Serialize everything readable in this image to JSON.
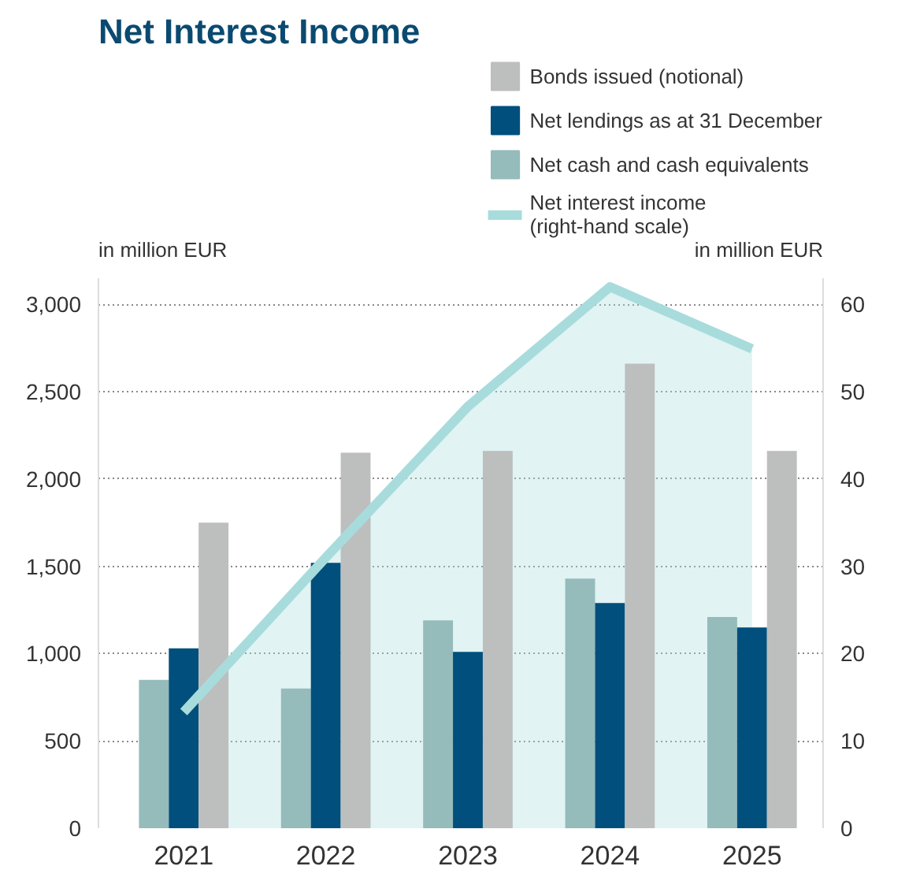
{
  "chart_data": {
    "type": "bar",
    "title": "Net Interest Income",
    "ylabel": "in million EUR",
    "y2label": "in million EUR",
    "categories": [
      "2021",
      "2022",
      "2023",
      "2024",
      "2025"
    ],
    "series": [
      {
        "name": "Net cash and cash equivalents",
        "color": "#95bbbb",
        "values": [
          850,
          800,
          1190,
          1430,
          1210
        ]
      },
      {
        "name": "Net lendings as at 31 December",
        "color": "#004f7c",
        "values": [
          1030,
          1520,
          1010,
          1290,
          1150
        ]
      },
      {
        "name": "Bonds issued (notional)",
        "color": "#bdbebe",
        "values": [
          1750,
          2150,
          2160,
          2660,
          2160
        ]
      },
      {
        "name": "Net interest income\n(right-hand scale)",
        "type": "area",
        "axis": "y2",
        "color": "#a8dcdc",
        "values": [
          13.3,
          31,
          48.3,
          62,
          54.9
        ]
      }
    ],
    "ylim": [
      0,
      3150
    ],
    "yticks": [
      {
        "value": 0,
        "label": "0"
      },
      {
        "value": 500,
        "label": "500"
      },
      {
        "value": 1000,
        "label": "1,000"
      },
      {
        "value": 1500,
        "label": "1,500"
      },
      {
        "value": 2000,
        "label": "2,000"
      },
      {
        "value": 2500,
        "label": "2,500"
      },
      {
        "value": 3000,
        "label": "3,000"
      }
    ],
    "y2lim": [
      0,
      63
    ],
    "y2ticks": [
      0,
      10,
      20,
      30,
      40,
      50,
      60
    ],
    "grid": "y",
    "legend": "top right"
  }
}
